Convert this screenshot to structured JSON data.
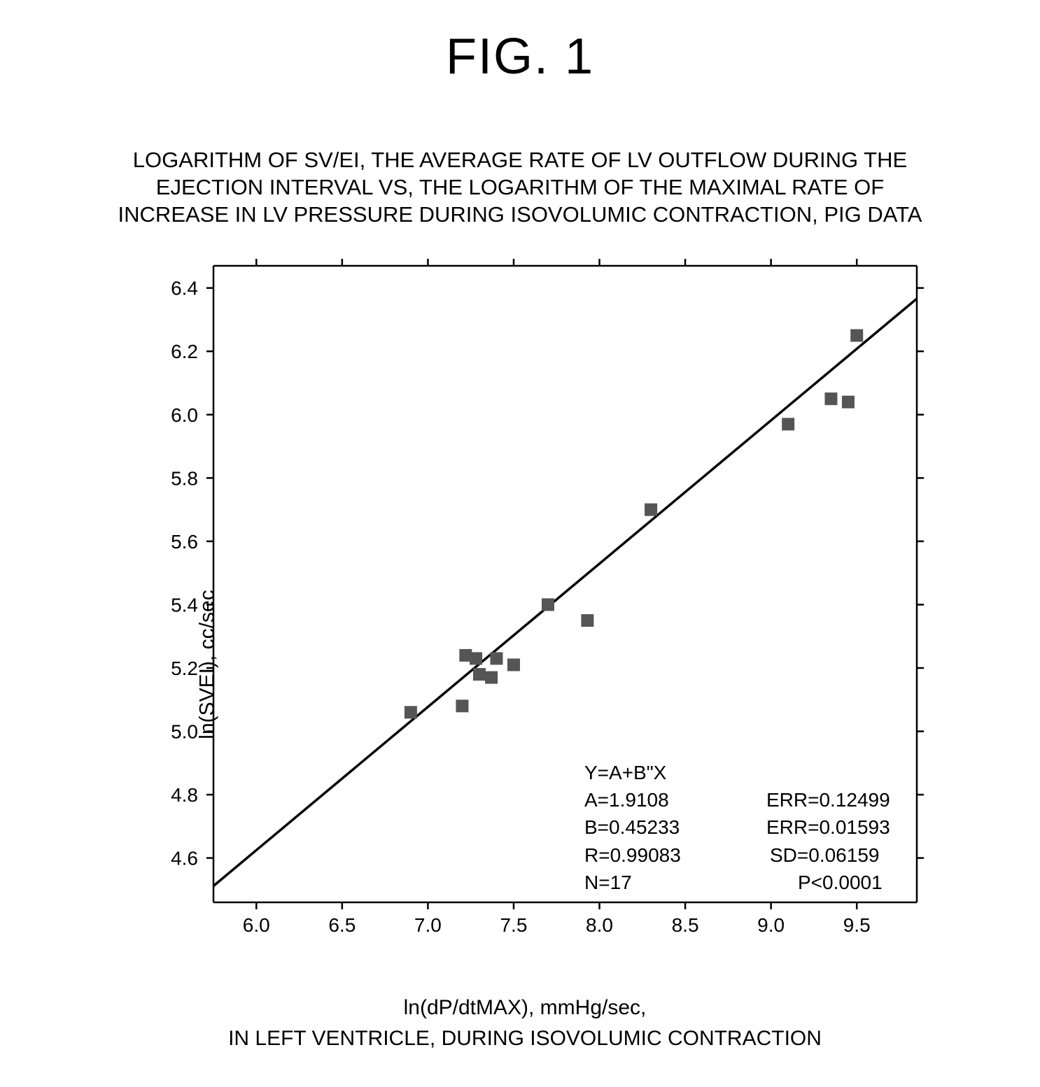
{
  "figure_caption": "FIG. 1",
  "chart": {
    "type": "scatter",
    "title": "LOGARITHM OF SV/EI, THE AVERAGE RATE OF LV OUTFLOW DURING THE EJECTION INTERVAL VS, THE LOGARITHM OF THE MAXIMAL RATE OF INCREASE IN LV PRESSURE DURING ISOVOLUMIC CONTRACTION, PIG DATA",
    "xlabel_line1": "ln(dP/dtMAX), mmHg/sec,",
    "xlabel_line2": "IN LEFT VENTRICLE, DURING ISOVOLUMIC CONTRACTION",
    "ylabel": "ln(SVEI), cc/sec",
    "xlim": [
      5.75,
      9.85
    ],
    "ylim": [
      4.46,
      6.47
    ],
    "xticks": [
      6.0,
      6.5,
      7.0,
      7.5,
      8.0,
      8.5,
      9.0,
      9.5
    ],
    "xtick_labels": [
      "6.0",
      "6.5",
      "7.0",
      "7.5",
      "8.0",
      "8.5",
      "9.0",
      "9.5"
    ],
    "yticks": [
      4.6,
      4.8,
      5.0,
      5.2,
      5.4,
      5.6,
      5.8,
      6.0,
      6.2,
      6.4
    ],
    "ytick_labels": [
      "4.6",
      "4.8",
      "5.0",
      "5.2",
      "5.4",
      "5.6",
      "5.8",
      "6.0",
      "6.2",
      "6.4"
    ],
    "tick_length": 10,
    "axis_color": "#000000",
    "axis_width": 2.5,
    "background_color": "#ffffff",
    "marker_color": "#555555",
    "marker_size": 18,
    "line_color": "#000000",
    "line_width": 3.5,
    "tick_fontsize": 28,
    "title_fontsize": 31,
    "label_fontsize": 30,
    "points": [
      {
        "x": 6.9,
        "y": 5.06
      },
      {
        "x": 7.2,
        "y": 5.08
      },
      {
        "x": 7.22,
        "y": 5.24
      },
      {
        "x": 7.28,
        "y": 5.23
      },
      {
        "x": 7.3,
        "y": 5.18
      },
      {
        "x": 7.37,
        "y": 5.17
      },
      {
        "x": 7.4,
        "y": 5.23
      },
      {
        "x": 7.5,
        "y": 5.21
      },
      {
        "x": 7.7,
        "y": 5.4
      },
      {
        "x": 7.93,
        "y": 5.35
      },
      {
        "x": 8.3,
        "y": 5.7
      },
      {
        "x": 9.1,
        "y": 5.97
      },
      {
        "x": 9.35,
        "y": 6.05
      },
      {
        "x": 9.45,
        "y": 6.04
      },
      {
        "x": 9.5,
        "y": 6.25
      }
    ],
    "fit_line": {
      "intercept": 1.9108,
      "slope": 0.45233,
      "x1": 5.75,
      "x2": 9.85
    },
    "stats": {
      "eq_label": "Y=A+B\"X",
      "a_label": "A=1.9108",
      "a_err": "ERR=0.12499",
      "b_label": "B=0.45233",
      "b_err": "ERR=0.01593",
      "r_label": "R=0.99083",
      "sd_label": "SD=0.06159",
      "n_label": "N=17",
      "p_label": "P<0.0001"
    }
  }
}
